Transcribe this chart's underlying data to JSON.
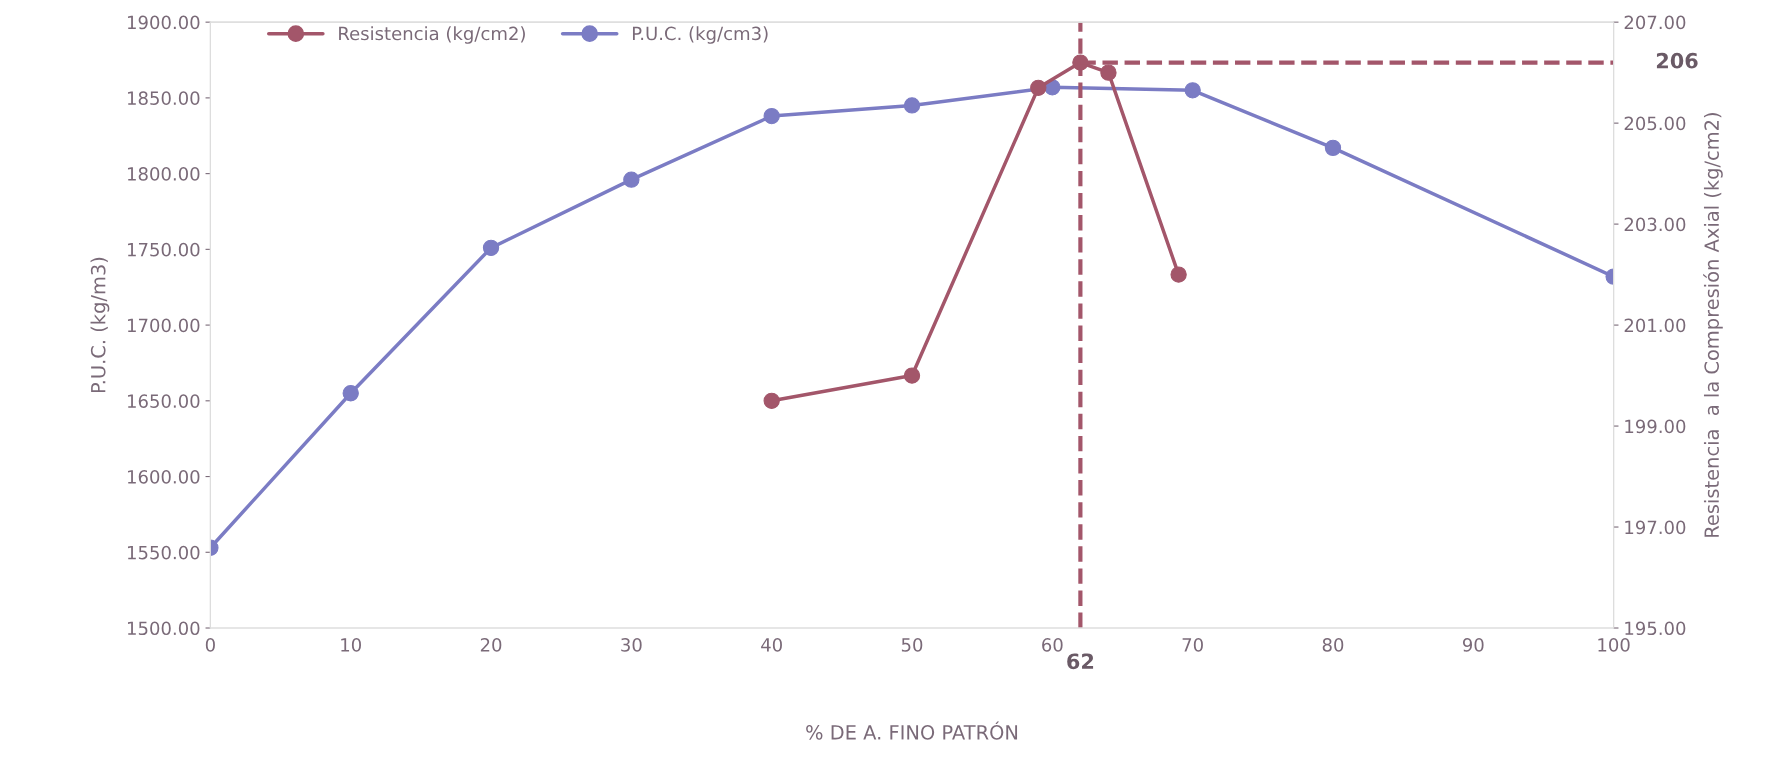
{
  "chart_data": {
    "type": "line",
    "xlabel": "% DE A. FINO PATRÓN",
    "ylabel": "P.U.C. (kg/m3)",
    "y2label": "Resistencia  a la Compresión Axial (kg/cm2)",
    "xlim": [
      0,
      100
    ],
    "xticks": [
      0,
      10,
      20,
      30,
      40,
      50,
      60,
      70,
      80,
      90,
      100
    ],
    "ylim": [
      1500,
      1900
    ],
    "yticks": [
      {
        "value": 1500,
        "label": "1500.00"
      },
      {
        "value": 1550,
        "label": "1550.00"
      },
      {
        "value": 1600,
        "label": "1600.00"
      },
      {
        "value": 1650,
        "label": "1650.00"
      },
      {
        "value": 1700,
        "label": "1700.00"
      },
      {
        "value": 1750,
        "label": "1750.00"
      },
      {
        "value": 1800,
        "label": "1800.00"
      },
      {
        "value": 1850,
        "label": "1850.00"
      },
      {
        "value": 1900,
        "label": "1900.00"
      }
    ],
    "y2lim": [
      195,
      207
    ],
    "y2ticks": [
      {
        "value": 195,
        "label": "195.00"
      },
      {
        "value": 197,
        "label": "197.00"
      },
      {
        "value": 199,
        "label": "199.00"
      },
      {
        "value": 201,
        "label": "201.00"
      },
      {
        "value": 203,
        "label": "203.00"
      },
      {
        "value": 205,
        "label": "205.00"
      },
      {
        "value": 207,
        "label": "207.00"
      }
    ],
    "marker": "circle",
    "legend": "top left",
    "grid": false,
    "series": [
      {
        "name": "Resistencia (kg/cm2)",
        "color": "#a3566a",
        "axis": "y2",
        "x": [
          40,
          50,
          59,
          62,
          64,
          69
        ],
        "values": [
          199.5,
          200.0,
          205.7,
          206.2,
          206.0,
          202.0
        ]
      },
      {
        "name": "P.U.C. (kg/cm3)",
        "color": "#7b7cc4",
        "x": [
          0,
          10,
          20,
          30,
          40,
          50,
          60,
          70,
          80,
          100
        ],
        "values": [
          1553,
          1655,
          1751,
          1796,
          1838,
          1845,
          1857,
          1855,
          1817,
          1732
        ]
      }
    ],
    "ref_lines": [
      {
        "axis": "x",
        "value": 62,
        "label": "62",
        "color": "#a3566a",
        "line_style": "dashed"
      },
      {
        "axis": "y2",
        "value": 206.2,
        "label": "206",
        "color": "#a3566a",
        "line_style": "dashed"
      }
    ]
  }
}
